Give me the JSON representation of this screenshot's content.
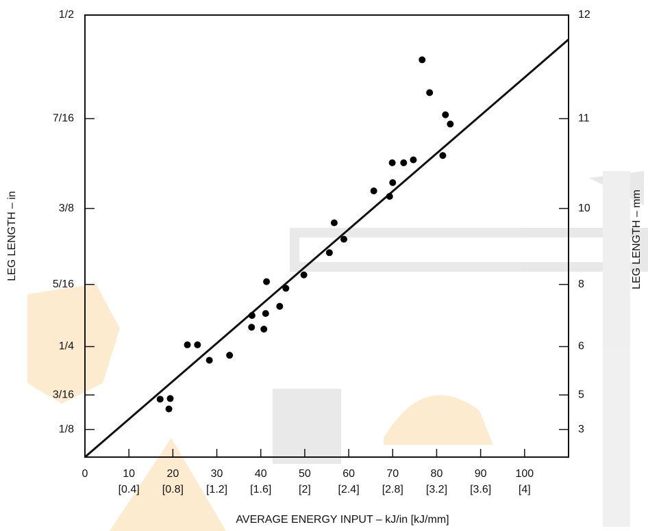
{
  "chart_data": {
    "type": "scatter",
    "x_label": "AVERAGE ENERGY INPUT – kJ/in [kJ/mm]",
    "y_label": "LEG LENGTH – in",
    "y2_label": "LEG LENGTH – mm",
    "xlim": [
      0,
      110
    ],
    "xticks": [
      0,
      10,
      20,
      30,
      40,
      50,
      60,
      70,
      80,
      90,
      100
    ],
    "x_secondary_ticks": [
      {
        "value": 10,
        "label": "[0.4]"
      },
      {
        "value": 20,
        "label": "[0.8]"
      },
      {
        "value": 30,
        "label": "[1.2]"
      },
      {
        "value": 40,
        "label": "[1.6]"
      },
      {
        "value": 50,
        "label": "[2]"
      },
      {
        "value": 60,
        "label": "[2.4]"
      },
      {
        "value": 70,
        "label": "[2.8]"
      },
      {
        "value": 80,
        "label": "[3.2]"
      },
      {
        "value": 90,
        "label": "[3.6]"
      },
      {
        "value": 100,
        "label": "[4]"
      }
    ],
    "ylim": [
      0,
      0.5
    ],
    "yscale": "square",
    "yticks": [
      {
        "value": 0.125,
        "label": "1/8"
      },
      {
        "value": 0.1875,
        "label": "3/16"
      },
      {
        "value": 0.25,
        "label": "1/4"
      },
      {
        "value": 0.3125,
        "label": "5/16"
      },
      {
        "value": 0.375,
        "label": "3/8"
      },
      {
        "value": 0.4375,
        "label": "7/16"
      },
      {
        "value": 0.5,
        "label": "1/2"
      }
    ],
    "y2ticks": [
      3,
      5,
      6,
      8,
      10,
      11,
      12
    ],
    "color": "#000000",
    "x": [
      17.1,
      19.4,
      19.1,
      23.3,
      25.6,
      28.3,
      32.9,
      37.9,
      38.0,
      40.7,
      41.1,
      41.3,
      44.3,
      45.7,
      49.8,
      55.6,
      56.7,
      58.9,
      65.7,
      69.3,
      70.0,
      69.9,
      72.5,
      74.7,
      81.4,
      76.7,
      78.4,
      82.0,
      83.1
    ],
    "y": [
      0.181,
      0.182,
      0.165,
      0.252,
      0.252,
      0.234,
      0.24,
      0.271,
      0.283,
      0.269,
      0.285,
      0.315,
      0.292,
      0.309,
      0.321,
      0.34,
      0.364,
      0.351,
      0.388,
      0.384,
      0.394,
      0.408,
      0.408,
      0.41,
      0.413,
      0.474,
      0.454,
      0.44,
      0.434
    ],
    "fit_line": {
      "x": [
        0,
        110
      ],
      "y": [
        0,
        0.486
      ]
    }
  }
}
